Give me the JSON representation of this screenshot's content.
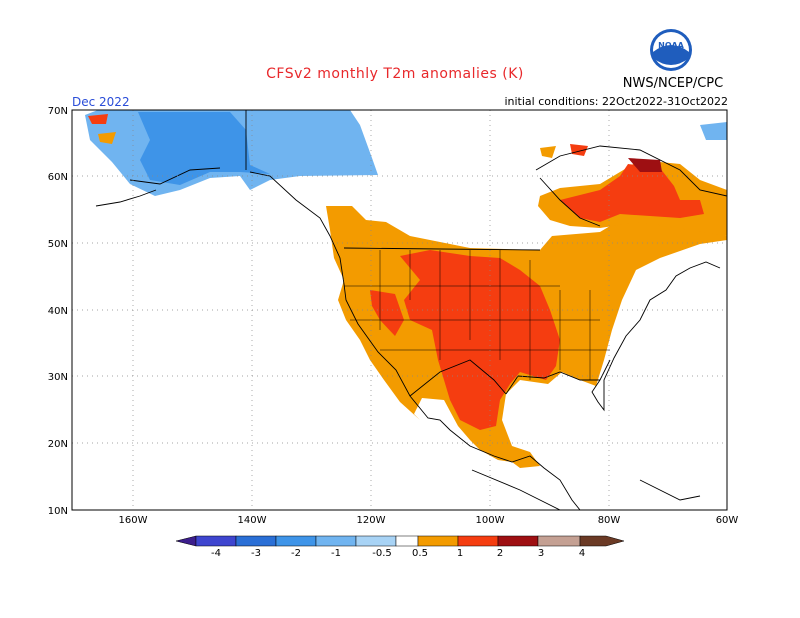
{
  "header": {
    "title": "CFSv2 monthly T2m anomalies (K)",
    "agency": "NWS/NCEP/CPC",
    "logo_text": "NOAA",
    "valid_month": "Dec 2022",
    "initial_conditions": "initial conditions: 22Oct2022-31Oct2022"
  },
  "map": {
    "lat_labels": [
      "70N",
      "60N",
      "50N",
      "40N",
      "30N",
      "20N",
      "10N"
    ],
    "lon_labels": [
      "160W",
      "140W",
      "120W",
      "100W",
      "80W",
      "60W"
    ],
    "projection_extent": {
      "lon_min": -170,
      "lon_max": -60,
      "lat_min": 10,
      "lat_max": 70
    }
  },
  "legend": {
    "labels": [
      "-4",
      "-3",
      "-2",
      "-1",
      "-0.5",
      "0.5",
      "1",
      "2",
      "3",
      "4"
    ],
    "colors": [
      "#3c1e8c",
      "#3e45cf",
      "#2a6fd6",
      "#3e94e8",
      "#70b4f0",
      "#a8d3f5",
      "#ffffff",
      "#f39b00",
      "#f53d10",
      "#9e0f12",
      "#c4a093",
      "#6b3a25"
    ]
  },
  "colors": {
    "warm_05": "#f39b00",
    "warm_1": "#f53d10",
    "warm_2": "#9e0f12",
    "cool_05": "#70b4f0",
    "cool_1": "#3e94e8",
    "title": "#e8282b",
    "month": "#2a4dd8"
  }
}
